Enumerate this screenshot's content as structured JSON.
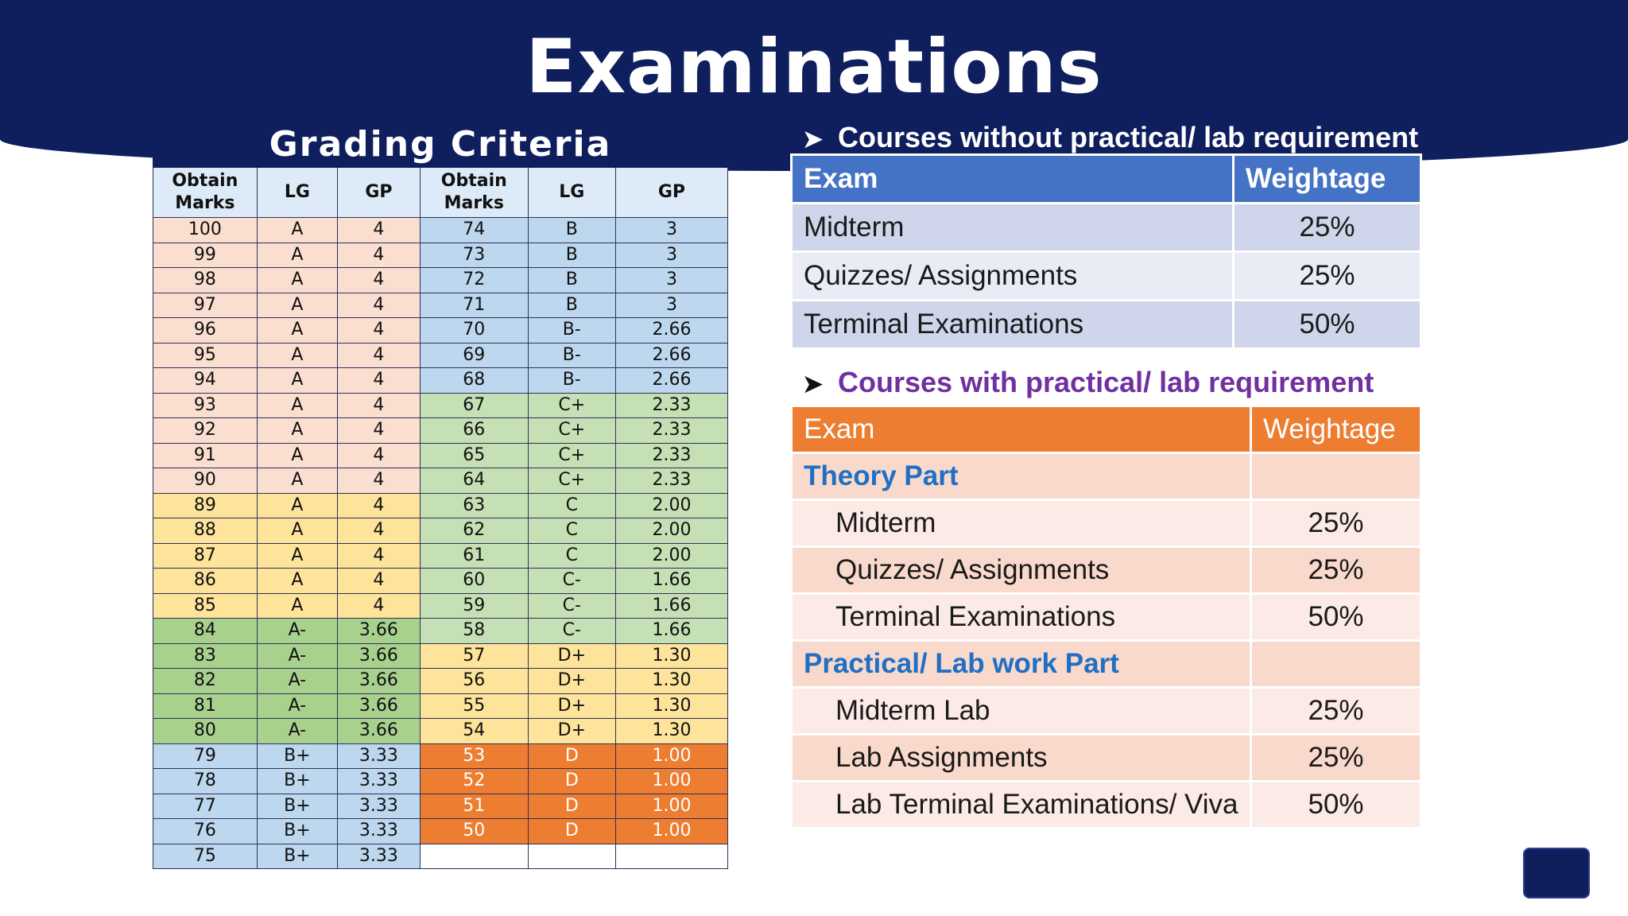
{
  "title": "Examinations",
  "grading": {
    "title": "Grading Criteria",
    "headers": [
      "Obtain Marks",
      "LG",
      "GP",
      "Obtain Marks",
      "LG",
      "GP"
    ],
    "rows": [
      [
        "100",
        "A",
        "4",
        "74",
        "B",
        "3"
      ],
      [
        "99",
        "A",
        "4",
        "73",
        "B",
        "3"
      ],
      [
        "98",
        "A",
        "4",
        "72",
        "B",
        "3"
      ],
      [
        "97",
        "A",
        "4",
        "71",
        "B",
        "3"
      ],
      [
        "96",
        "A",
        "4",
        "70",
        "B-",
        "2.66"
      ],
      [
        "95",
        "A",
        "4",
        "69",
        "B-",
        "2.66"
      ],
      [
        "94",
        "A",
        "4",
        "68",
        "B-",
        "2.66"
      ],
      [
        "93",
        "A",
        "4",
        "67",
        "C+",
        "2.33"
      ],
      [
        "92",
        "A",
        "4",
        "66",
        "C+",
        "2.33"
      ],
      [
        "91",
        "A",
        "4",
        "65",
        "C+",
        "2.33"
      ],
      [
        "90",
        "A",
        "4",
        "64",
        "C+",
        "2.33"
      ],
      [
        "89",
        "A",
        "4",
        "63",
        "C",
        "2.00"
      ],
      [
        "88",
        "A",
        "4",
        "62",
        "C",
        "2.00"
      ],
      [
        "87",
        "A",
        "4",
        "61",
        "C",
        "2.00"
      ],
      [
        "86",
        "A",
        "4",
        "60",
        "C-",
        "1.66"
      ],
      [
        "85",
        "A",
        "4",
        "59",
        "C-",
        "1.66"
      ],
      [
        "84",
        "A-",
        "3.66",
        "58",
        "C-",
        "1.66"
      ],
      [
        "83",
        "A-",
        "3.66",
        "57",
        "D+",
        "1.30"
      ],
      [
        "82",
        "A-",
        "3.66",
        "56",
        "D+",
        "1.30"
      ],
      [
        "81",
        "A-",
        "3.66",
        "55",
        "D+",
        "1.30"
      ],
      [
        "80",
        "A-",
        "3.66",
        "54",
        "D+",
        "1.30"
      ],
      [
        "79",
        "B+",
        "3.33",
        "53",
        "D",
        "1.00"
      ],
      [
        "78",
        "B+",
        "3.33",
        "52",
        "D",
        "1.00"
      ],
      [
        "77",
        "B+",
        "3.33",
        "51",
        "D",
        "1.00"
      ],
      [
        "76",
        "B+",
        "3.33",
        "50",
        "D",
        "1.00"
      ],
      [
        "75",
        "B+",
        "3.33",
        "",
        "",
        ""
      ]
    ],
    "colors": {
      "peach": "#fadfd0",
      "yellow": "#fde49a",
      "green": "#a9d18e",
      "light_green": "#c5e0b4",
      "blue": "#bdd7ee",
      "orange": "#ed7d31"
    }
  },
  "no_lab": {
    "bullet": "Courses without practical/ lab requirement",
    "headers": [
      "Exam",
      "Weightage"
    ],
    "rows": [
      [
        "Midterm",
        "25%"
      ],
      [
        "Quizzes/ Assignments",
        "25%"
      ],
      [
        "Terminal Examinations",
        "50%"
      ]
    ]
  },
  "with_lab": {
    "bullet": "Courses with practical/ lab requirement",
    "headers": [
      "Exam",
      "Weightage"
    ],
    "sections": [
      {
        "label": "Theory Part",
        "rows": [
          [
            "Midterm",
            "25%"
          ],
          [
            "Quizzes/ Assignments",
            "25%"
          ],
          [
            "Terminal Examinations",
            "50%"
          ]
        ]
      },
      {
        "label": "Practical/ Lab work Part",
        "rows": [
          [
            "Midterm Lab",
            "25%"
          ],
          [
            "Lab Assignments",
            "25%"
          ],
          [
            "Lab Terminal Examinations/ Viva",
            "50%"
          ]
        ]
      }
    ]
  },
  "icons": {
    "bullet": "arrowhead-bullet-icon",
    "nav": "navigation-button"
  }
}
